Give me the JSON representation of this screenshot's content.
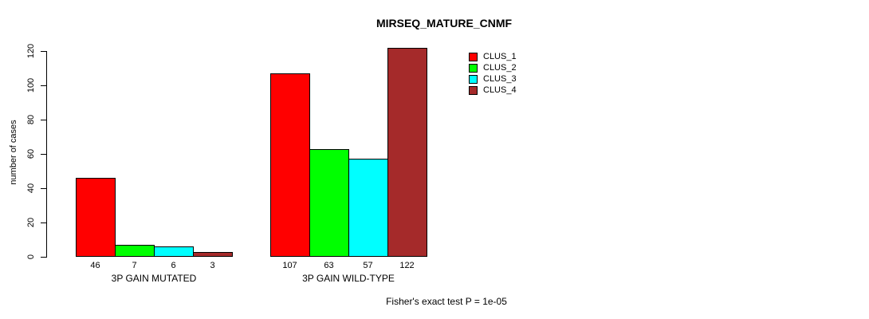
{
  "chart_data": {
    "type": "bar",
    "title": "MIRSEQ_MATURE_CNMF",
    "ylabel": "number of cases",
    "xlabel": "",
    "categories": [
      "3P GAIN MUTATED",
      "3P GAIN WILD-TYPE"
    ],
    "series": [
      {
        "name": "CLUS_1",
        "color": "#ff0000",
        "values": [
          46,
          107
        ]
      },
      {
        "name": "CLUS_2",
        "color": "#00ff00",
        "values": [
          7,
          63
        ]
      },
      {
        "name": "CLUS_3",
        "color": "#00ffff",
        "values": [
          6,
          57
        ]
      },
      {
        "name": "CLUS_4",
        "color": "#a52a2a",
        "values": [
          3,
          122
        ]
      }
    ],
    "ylim": [
      0,
      120
    ],
    "yticks": [
      0,
      20,
      40,
      60,
      80,
      100,
      120
    ],
    "bar_value_labels_shown": true,
    "grid": false,
    "legend_position": "top-right",
    "annotation": "Fisher's exact test P = 1e-05"
  },
  "colors": {
    "background": "#ffffff",
    "axis": "#000000",
    "text": "#000000"
  }
}
